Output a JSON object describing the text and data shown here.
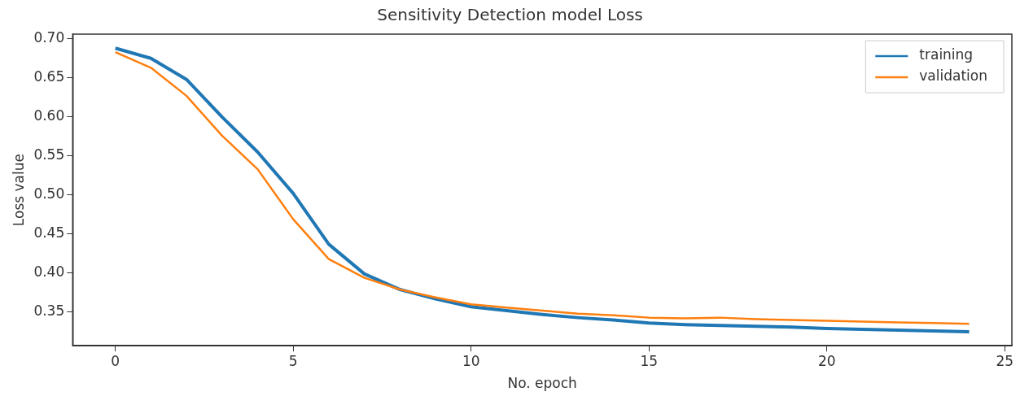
{
  "chart_data": {
    "type": "line",
    "title": "Sensitivity Detection model Loss",
    "xlabel": "No. epoch",
    "ylabel": "Loss value",
    "x": [
      0,
      1,
      2,
      3,
      4,
      5,
      6,
      7,
      8,
      9,
      10,
      11,
      12,
      13,
      14,
      15,
      16,
      17,
      18,
      19,
      20,
      21,
      22,
      23,
      24
    ],
    "series": [
      {
        "name": "training",
        "color": "#1f77b4",
        "values": [
          0.688,
          0.675,
          0.648,
          0.6,
          0.555,
          0.502,
          0.437,
          0.399,
          0.379,
          0.367,
          0.357,
          0.352,
          0.347,
          0.343,
          0.34,
          0.336,
          0.334,
          0.333,
          0.332,
          0.331,
          0.329,
          0.328,
          0.327,
          0.326,
          0.325
        ]
      },
      {
        "name": "validation",
        "color": "#ff7f0e",
        "values": [
          0.683,
          0.663,
          0.627,
          0.576,
          0.533,
          0.469,
          0.418,
          0.394,
          0.379,
          0.369,
          0.36,
          0.356,
          0.352,
          0.348,
          0.346,
          0.343,
          0.342,
          0.343,
          0.341,
          0.34,
          0.339,
          0.338,
          0.337,
          0.336,
          0.335
        ]
      }
    ],
    "xlim": [
      -1.2,
      25.2
    ],
    "xticks": [
      0,
      5,
      10,
      15,
      20,
      25
    ],
    "ylim": [
      0.307,
      0.706
    ],
    "yticks": [
      {
        "value": 0.35,
        "label": "0.35"
      },
      {
        "value": 0.4,
        "label": "0.40"
      },
      {
        "value": 0.45,
        "label": "0.45"
      },
      {
        "value": 0.5,
        "label": "0.50"
      },
      {
        "value": 0.55,
        "label": "0.55"
      },
      {
        "value": 0.6,
        "label": "0.60"
      },
      {
        "value": 0.65,
        "label": "0.65"
      },
      {
        "value": 0.7,
        "label": "0.70"
      }
    ],
    "grid": false,
    "legend": "top right",
    "marker": "none",
    "line_style": "solid"
  }
}
